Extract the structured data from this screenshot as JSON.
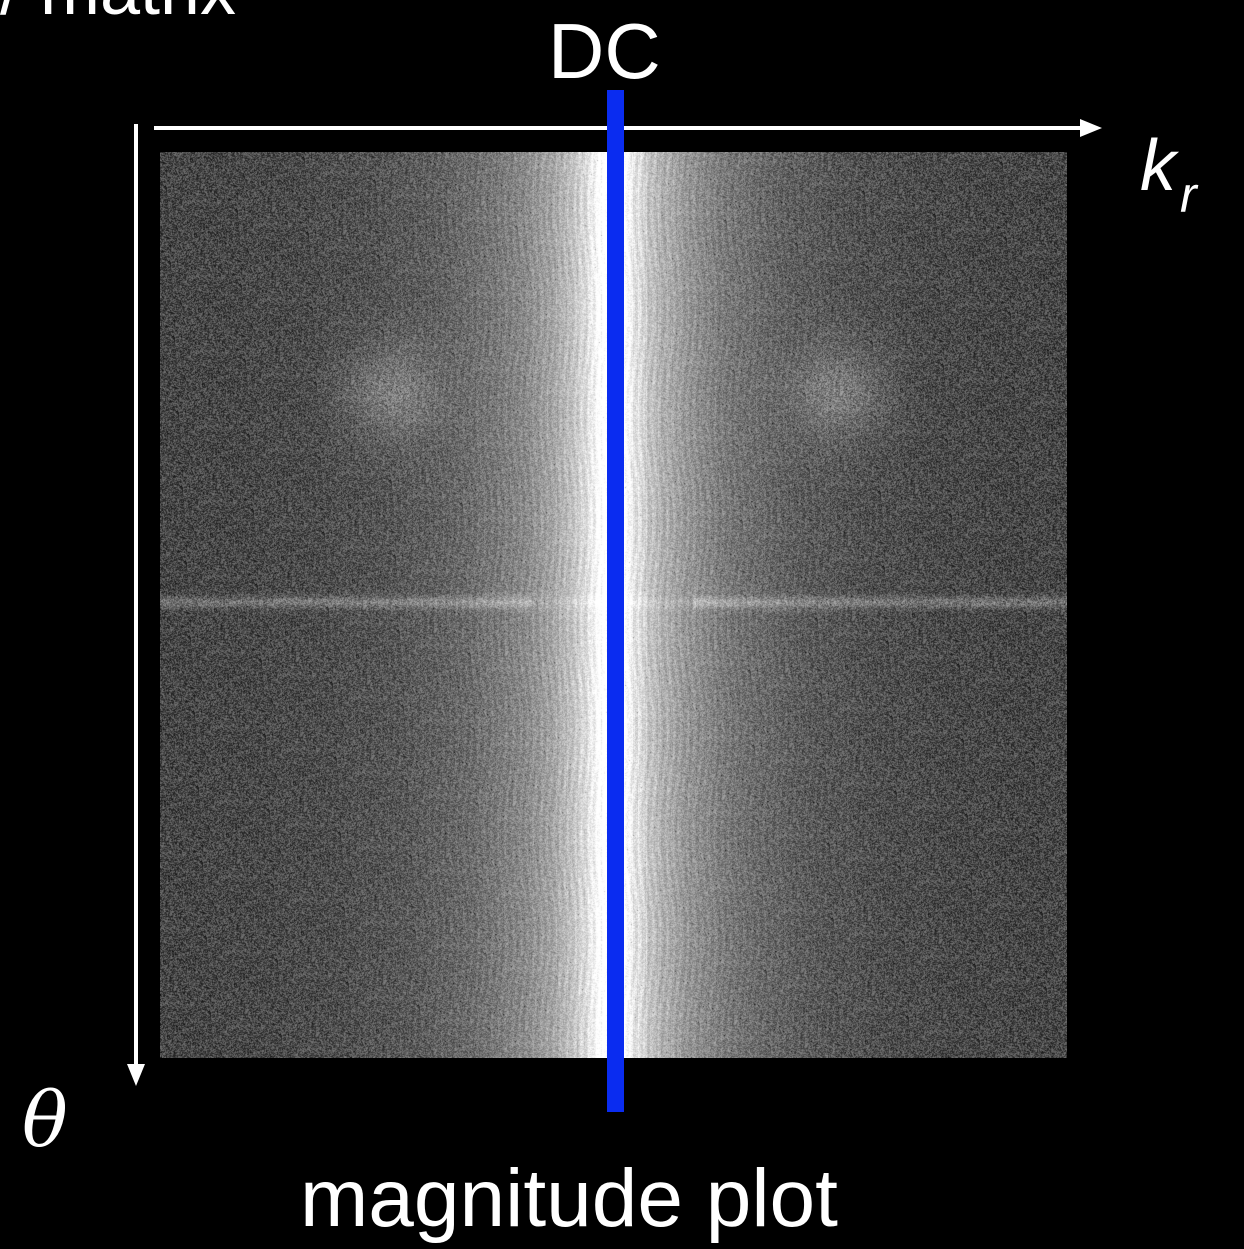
{
  "top_fragment": "/ matrix",
  "dc_label": "DC",
  "axis_kr": {
    "symbol": "k",
    "subscript": "r"
  },
  "axis_theta": "θ",
  "caption": "magnitude plot",
  "colors": {
    "background": "#000000",
    "arrow": "#ffffff",
    "dc_line": "#0a2cf0"
  }
}
